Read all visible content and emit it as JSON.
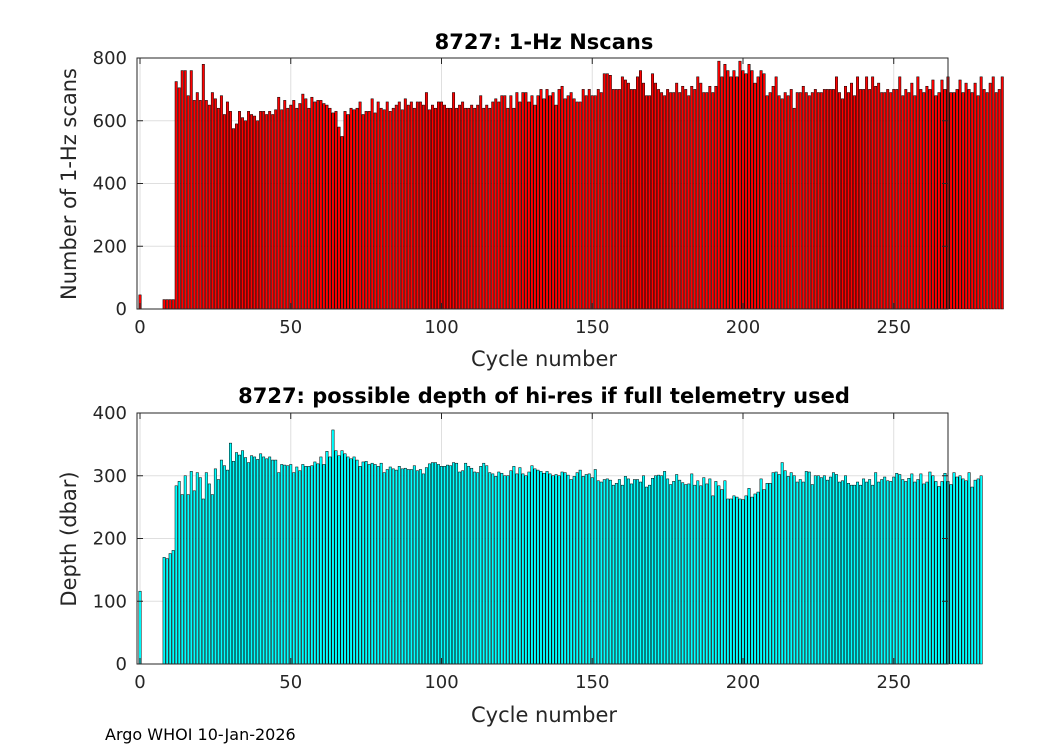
{
  "footer": "Argo WHOI 10-Jan-2026",
  "colors": {
    "top_bars": "#ff0000",
    "bottom_bars": "#00ffff"
  },
  "chart_data": [
    {
      "type": "bar",
      "title": "8727: 1-Hz Nscans",
      "xlabel": "Cycle number",
      "ylabel": "Number of 1-Hz scans",
      "xlim": [
        -1,
        268
      ],
      "ylim": [
        0,
        800
      ],
      "xticks": [
        0,
        50,
        100,
        150,
        200,
        250
      ],
      "yticks": [
        0,
        200,
        400,
        600,
        800
      ],
      "grid": true,
      "x_start": 0,
      "values": [
        45,
        0,
        0,
        0,
        0,
        0,
        0,
        0,
        30,
        30,
        30,
        30,
        725,
        705,
        760,
        760,
        680,
        760,
        665,
        690,
        665,
        780,
        665,
        650,
        690,
        670,
        640,
        680,
        620,
        660,
        630,
        575,
        590,
        630,
        610,
        600,
        630,
        620,
        615,
        600,
        630,
        630,
        620,
        630,
        620,
        635,
        675,
        635,
        665,
        640,
        650,
        665,
        640,
        655,
        685,
        670,
        640,
        675,
        660,
        665,
        665,
        655,
        650,
        640,
        625,
        630,
        580,
        550,
        630,
        620,
        640,
        635,
        640,
        660,
        620,
        630,
        630,
        670,
        625,
        660,
        640,
        635,
        660,
        630,
        640,
        650,
        660,
        635,
        670,
        650,
        660,
        640,
        660,
        660,
        650,
        690,
        635,
        650,
        640,
        660,
        660,
        650,
        640,
        640,
        690,
        640,
        650,
        660,
        640,
        640,
        650,
        640,
        650,
        680,
        640,
        650,
        640,
        660,
        670,
        660,
        680,
        680,
        640,
        680,
        640,
        690,
        660,
        690,
        690,
        660,
        680,
        650,
        680,
        700,
        670,
        700,
        680,
        690,
        650,
        700,
        710,
        670,
        680,
        690,
        670,
        660,
        660,
        700,
        680,
        700,
        680,
        680,
        700,
        690,
        750,
        750,
        745,
        700,
        700,
        700,
        740,
        730,
        720,
        700,
        700,
        740,
        760,
        720,
        680,
        680,
        750,
        720,
        700,
        690,
        680,
        700,
        690,
        690,
        720,
        690,
        710,
        700,
        680,
        710,
        700,
        740,
        720,
        690,
        690,
        710,
        690,
        710,
        790,
        740,
        780,
        760,
        740,
        760,
        740,
        790,
        760,
        750,
        780,
        760,
        720,
        740,
        760,
        750,
        680,
        690,
        710,
        740,
        680,
        670,
        690,
        680,
        700,
        640,
        690,
        690,
        710,
        690,
        680,
        690,
        700,
        690,
        690,
        700,
        700,
        700,
        700,
        740,
        690,
        670,
        710,
        690,
        720,
        680,
        740,
        700,
        700,
        740,
        700,
        740,
        710,
        720,
        690,
        690,
        700,
        690,
        700,
        700,
        740,
        680,
        700,
        690,
        720,
        680,
        740,
        700,
        690,
        710,
        700,
        730,
        680,
        690,
        730,
        700,
        740,
        690,
        690,
        700,
        730,
        690,
        720,
        700,
        690,
        720,
        680,
        740,
        700,
        690,
        720,
        740,
        690,
        700,
        740
      ]
    },
    {
      "type": "bar",
      "title": "8727: possible depth of hi-res if full telemetry used",
      "xlabel": "Cycle number",
      "ylabel": "Depth (dbar)",
      "xlim": [
        -1,
        268
      ],
      "ylim": [
        0,
        400
      ],
      "xticks": [
        0,
        50,
        100,
        150,
        200,
        250
      ],
      "yticks": [
        0,
        100,
        200,
        300,
        400
      ],
      "grid": true,
      "x_start": 0,
      "values": [
        116,
        0,
        0,
        0,
        0,
        0,
        0,
        0,
        170,
        168,
        176,
        181,
        284,
        291,
        270,
        300,
        270,
        307,
        276,
        305,
        297,
        263,
        305,
        287,
        270,
        311,
        294,
        325,
        316,
        309,
        352,
        323,
        337,
        333,
        340,
        329,
        321,
        332,
        330,
        326,
        335,
        330,
        327,
        330,
        325,
        325,
        305,
        318,
        317,
        316,
        318,
        305,
        314,
        308,
        318,
        315,
        315,
        316,
        322,
        319,
        330,
        318,
        339,
        330,
        373,
        340,
        332,
        340,
        335,
        330,
        327,
        330,
        325,
        315,
        322,
        323,
        318,
        320,
        318,
        315,
        320,
        305,
        310,
        314,
        311,
        309,
        315,
        311,
        312,
        310,
        310,
        316,
        308,
        310,
        303,
        313,
        319,
        321,
        321,
        318,
        315,
        315,
        317,
        316,
        321,
        320,
        306,
        308,
        320,
        315,
        312,
        306,
        305,
        315,
        320,
        316,
        305,
        303,
        299,
        306,
        304,
        300,
        300,
        308,
        315,
        303,
        313,
        303,
        300,
        306,
        316,
        311,
        309,
        307,
        304,
        307,
        303,
        300,
        302,
        300,
        306,
        305,
        301,
        294,
        299,
        305,
        309,
        299,
        302,
        303,
        297,
        310,
        292,
        290,
        294,
        295,
        293,
        285,
        288,
        294,
        285,
        299,
        295,
        287,
        294,
        294,
        290,
        300,
        282,
        285,
        296,
        300,
        301,
        300,
        307,
        295,
        286,
        291,
        302,
        293,
        289,
        286,
        287,
        303,
        285,
        292,
        284,
        297,
        287,
        295,
        268,
        291,
        284,
        278,
        292,
        263,
        263,
        268,
        266,
        263,
        262,
        268,
        280,
        266,
        271,
        274,
        295,
        278,
        288,
        288,
        305,
        306,
        302,
        321,
        308,
        299,
        305,
        300,
        290,
        294,
        290,
        307,
        306,
        286,
        300,
        300,
        297,
        300,
        293,
        298,
        305,
        302,
        290,
        292,
        300,
        288,
        285,
        285,
        290,
        285,
        295,
        290,
        294,
        285,
        305,
        290,
        294,
        298,
        292,
        291,
        298,
        304,
        302,
        294,
        291,
        296,
        303,
        290,
        294,
        303,
        287,
        290,
        306,
        300,
        291,
        283,
        291,
        304,
        291,
        286,
        305,
        298,
        300,
        295,
        292,
        305,
        282,
        293,
        295,
        300
      ]
    }
  ]
}
